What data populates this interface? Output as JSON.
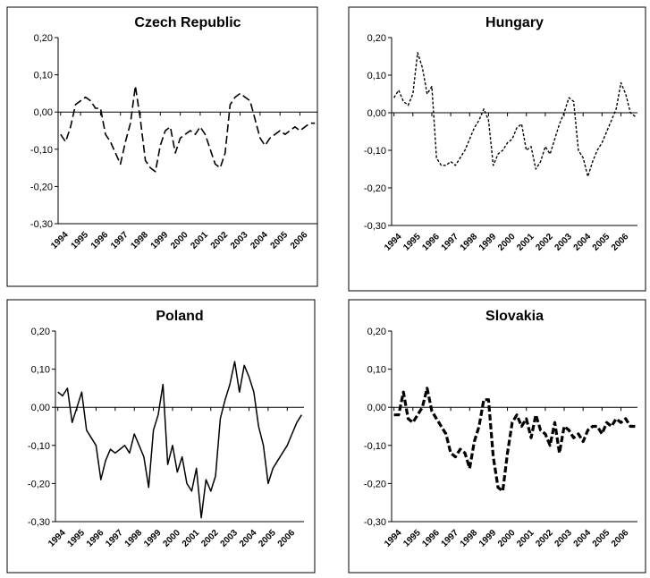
{
  "chart_data": [
    {
      "type": "line",
      "title": "Czech Republic",
      "line_style": "long-dash",
      "color": "#000000",
      "categories": [
        "1994",
        null,
        null,
        null,
        "1995",
        null,
        null,
        null,
        "1996",
        null,
        null,
        null,
        "1997",
        null,
        null,
        null,
        "1998",
        null,
        null,
        null,
        "1999",
        null,
        null,
        null,
        "2000",
        null,
        null,
        null,
        "2001",
        null,
        null,
        null,
        "2002",
        null,
        null,
        null,
        "2003",
        null,
        null,
        null,
        "2004",
        null,
        null,
        null,
        "2005",
        null,
        null,
        null,
        "2006",
        null,
        null,
        null
      ],
      "values": [
        -0.06,
        -0.08,
        -0.04,
        0.02,
        0.03,
        0.04,
        0.03,
        0.01,
        0.01,
        -0.06,
        -0.08,
        -0.11,
        -0.14,
        -0.08,
        -0.03,
        0.07,
        -0.02,
        -0.13,
        -0.15,
        -0.16,
        -0.09,
        -0.05,
        -0.04,
        -0.11,
        -0.07,
        -0.06,
        -0.05,
        -0.06,
        -0.04,
        -0.06,
        -0.1,
        -0.14,
        -0.15,
        -0.11,
        0.02,
        0.04,
        0.05,
        0.04,
        0.03,
        -0.02,
        -0.07,
        -0.09,
        -0.07,
        -0.06,
        -0.05,
        -0.06,
        -0.05,
        -0.04,
        -0.05,
        -0.04,
        -0.03,
        -0.03
      ],
      "ylim": [
        -0.3,
        0.2
      ],
      "yticks": [
        {
          "value": -0.3,
          "label": "-0,30"
        },
        {
          "value": -0.2,
          "label": "-0,20"
        },
        {
          "value": -0.1,
          "label": "-0,10"
        },
        {
          "value": 0,
          "label": "0,00"
        },
        {
          "value": 0.1,
          "label": "0,10"
        },
        {
          "value": 0.2,
          "label": "0,20"
        }
      ]
    },
    {
      "type": "line",
      "title": "Hungary",
      "line_style": "short-dash",
      "color": "#000000",
      "categories": [
        "1994",
        null,
        null,
        null,
        "1995",
        null,
        null,
        null,
        "1996",
        null,
        null,
        null,
        "1997",
        null,
        null,
        null,
        "1998",
        null,
        null,
        null,
        "1999",
        null,
        null,
        null,
        "2000",
        null,
        null,
        null,
        "2001",
        null,
        null,
        null,
        "2002",
        null,
        null,
        null,
        "2003",
        null,
        null,
        null,
        "2004",
        null,
        null,
        null,
        "2005",
        null,
        null,
        null,
        "2006",
        null,
        null,
        null
      ],
      "values": [
        0.04,
        0.06,
        0.03,
        0.02,
        0.05,
        0.16,
        0.12,
        0.05,
        0.07,
        -0.12,
        -0.14,
        -0.14,
        -0.13,
        -0.14,
        -0.12,
        -0.1,
        -0.07,
        -0.04,
        -0.02,
        0.01,
        -0.02,
        -0.14,
        -0.11,
        -0.1,
        -0.08,
        -0.07,
        -0.04,
        -0.03,
        -0.1,
        -0.09,
        -0.15,
        -0.13,
        -0.09,
        -0.11,
        -0.07,
        -0.03,
        0.0,
        0.04,
        0.03,
        -0.1,
        -0.12,
        -0.17,
        -0.13,
        -0.1,
        -0.08,
        -0.05,
        -0.02,
        0.01,
        0.08,
        0.05,
        0.0,
        -0.01
      ],
      "ylim": [
        -0.3,
        0.2
      ],
      "yticks": [
        {
          "value": -0.3,
          "label": "-0,30"
        },
        {
          "value": -0.2,
          "label": "-0,20"
        },
        {
          "value": -0.1,
          "label": "-0,10"
        },
        {
          "value": 0,
          "label": "0,00"
        },
        {
          "value": 0.1,
          "label": "0,10"
        },
        {
          "value": 0.2,
          "label": "0,20"
        }
      ]
    },
    {
      "type": "line",
      "title": "Poland",
      "line_style": "solid",
      "color": "#000000",
      "categories": [
        "1994",
        null,
        null,
        null,
        "1995",
        null,
        null,
        null,
        "1996",
        null,
        null,
        null,
        "1997",
        null,
        null,
        null,
        "1998",
        null,
        null,
        null,
        "1999",
        null,
        null,
        null,
        "2000",
        null,
        null,
        null,
        "2001",
        null,
        null,
        null,
        "2002",
        null,
        null,
        null,
        "2003",
        null,
        null,
        null,
        "2004",
        null,
        null,
        null,
        "2005",
        null,
        null,
        null,
        "2006",
        null,
        null,
        null
      ],
      "values": [
        0.04,
        0.03,
        0.05,
        -0.04,
        0.0,
        0.04,
        -0.06,
        -0.08,
        -0.1,
        -0.19,
        -0.14,
        -0.11,
        -0.12,
        -0.11,
        -0.1,
        -0.12,
        -0.07,
        -0.1,
        -0.13,
        -0.21,
        -0.06,
        -0.02,
        0.06,
        -0.15,
        -0.1,
        -0.17,
        -0.13,
        -0.2,
        -0.22,
        -0.16,
        -0.29,
        -0.19,
        -0.22,
        -0.18,
        -0.03,
        0.02,
        0.06,
        0.12,
        0.04,
        0.11,
        0.08,
        0.04,
        -0.05,
        -0.1,
        -0.2,
        -0.16,
        -0.14,
        -0.12,
        -0.1,
        -0.07,
        -0.04,
        -0.02
      ],
      "ylim": [
        -0.3,
        0.2
      ],
      "yticks": [
        {
          "value": -0.3,
          "label": "-0,30"
        },
        {
          "value": -0.2,
          "label": "-0,20"
        },
        {
          "value": -0.1,
          "label": "-0,10"
        },
        {
          "value": 0,
          "label": "0,00"
        },
        {
          "value": 0.1,
          "label": "0,10"
        },
        {
          "value": 0.2,
          "label": "0,20"
        }
      ]
    },
    {
      "type": "line",
      "title": "Slovakia",
      "line_style": "thick-dash",
      "color": "#000000",
      "categories": [
        "1994",
        null,
        null,
        null,
        "1995",
        null,
        null,
        null,
        "1996",
        null,
        null,
        null,
        "1997",
        null,
        null,
        null,
        "1998",
        null,
        null,
        null,
        "1999",
        null,
        null,
        null,
        "2000",
        null,
        null,
        null,
        "2001",
        null,
        null,
        null,
        "2002",
        null,
        null,
        null,
        "2003",
        null,
        null,
        null,
        "2004",
        null,
        null,
        null,
        "2005",
        null,
        null,
        null,
        "2006",
        null,
        null,
        null
      ],
      "values": [
        -0.02,
        -0.02,
        0.04,
        -0.03,
        -0.04,
        -0.02,
        0.0,
        0.05,
        -0.01,
        -0.03,
        -0.05,
        -0.07,
        -0.12,
        -0.13,
        -0.11,
        -0.12,
        -0.16,
        -0.09,
        -0.05,
        0.02,
        0.02,
        -0.13,
        -0.21,
        -0.22,
        -0.12,
        -0.04,
        -0.02,
        -0.05,
        -0.03,
        -0.08,
        -0.02,
        -0.06,
        -0.07,
        -0.1,
        -0.04,
        -0.12,
        -0.05,
        -0.06,
        -0.08,
        -0.07,
        -0.09,
        -0.06,
        -0.05,
        -0.05,
        -0.07,
        -0.04,
        -0.05,
        -0.03,
        -0.04,
        -0.03,
        -0.05,
        -0.05
      ],
      "ylim": [
        -0.3,
        0.2
      ],
      "yticks": [
        {
          "value": -0.3,
          "label": "-0,30"
        },
        {
          "value": -0.2,
          "label": "-0,20"
        },
        {
          "value": -0.1,
          "label": "-0,10"
        },
        {
          "value": 0,
          "label": "0,00"
        },
        {
          "value": 0.1,
          "label": "0,10"
        },
        {
          "value": 0.2,
          "label": "0,20"
        }
      ]
    }
  ]
}
